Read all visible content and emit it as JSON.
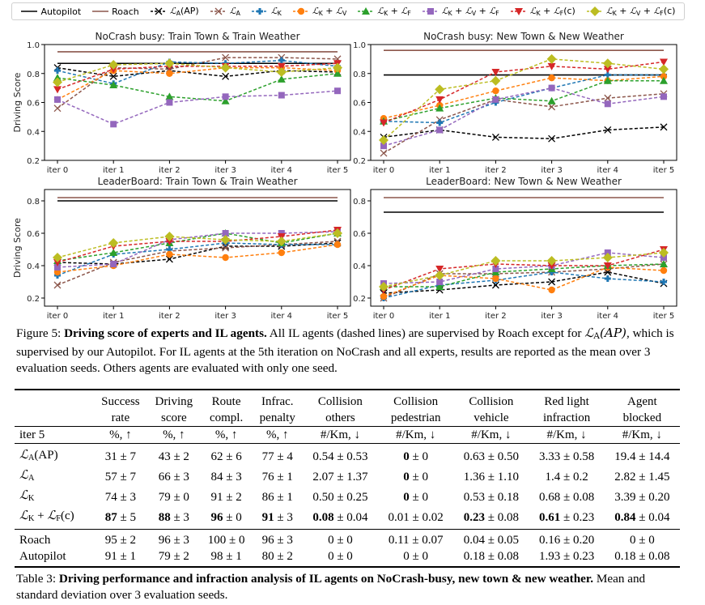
{
  "legend": [
    {
      "key": "autopilot",
      "label": "Autopilot",
      "math": false
    },
    {
      "key": "roach",
      "label": "Roach",
      "math": false
    },
    {
      "key": "la_ap",
      "label": "L_A(AP)",
      "math": true
    },
    {
      "key": "la",
      "label": "L_A",
      "math": true
    },
    {
      "key": "lk",
      "label": "L_K",
      "math": true
    },
    {
      "key": "lk_lv",
      "label": "L_K + L_V",
      "math": true
    },
    {
      "key": "lk_lf",
      "label": "L_K + L_F",
      "math": true
    },
    {
      "key": "lk_lv_lf",
      "label": "L_K + L_V + L_F",
      "math": true
    },
    {
      "key": "lk_lfc",
      "label": "L_K + L_F(c)",
      "math": true
    },
    {
      "key": "lk_lv_lfc",
      "label": "L_K + L_V + L_F(c)",
      "math": true
    }
  ],
  "series_styles": {
    "autopilot": {
      "color": "#000000",
      "dashed": false,
      "marker": "none"
    },
    "roach": {
      "color": "#8c564b",
      "dashed": false,
      "marker": "none"
    },
    "la_ap": {
      "color": "#000000",
      "dashed": true,
      "marker": "x"
    },
    "la": {
      "color": "#8c564b",
      "dashed": true,
      "marker": "x"
    },
    "lk": {
      "color": "#1f77b4",
      "dashed": true,
      "marker": "plus"
    },
    "lk_lv": {
      "color": "#ff7f0e",
      "dashed": true,
      "marker": "circle"
    },
    "lk_lf": {
      "color": "#2ca02c",
      "dashed": true,
      "marker": "triangle-up"
    },
    "lk_lv_lf": {
      "color": "#9467bd",
      "dashed": true,
      "marker": "square"
    },
    "lk_lfc": {
      "color": "#d62728",
      "dashed": true,
      "marker": "triangle-down"
    },
    "lk_lv_lfc": {
      "color": "#bcbd22",
      "dashed": true,
      "marker": "diamond"
    }
  },
  "chart_data": [
    {
      "type": "line",
      "title": "NoCrash busy: Train Town & Train Weather",
      "xlabel": "",
      "ylabel": "Driving Score",
      "categories": [
        "iter 0",
        "iter 1",
        "iter 2",
        "iter 3",
        "iter 4",
        "iter 5"
      ],
      "ylim": [
        0.2,
        1.0
      ],
      "yticks": [
        "0.2",
        "0.4",
        "0.6",
        "0.8",
        "1.0"
      ],
      "ytick_values": [
        0.2,
        0.4,
        0.6,
        0.8,
        1.0
      ],
      "hlines": [
        {
          "key": "roach",
          "value": 0.95
        },
        {
          "key": "autopilot",
          "value": 0.87
        }
      ],
      "series": [
        {
          "key": "la_ap",
          "name": "L_A(AP)",
          "values": [
            0.84,
            0.78,
            0.82,
            0.78,
            0.82,
            0.81
          ]
        },
        {
          "key": "la",
          "name": "L_A",
          "values": [
            0.56,
            0.84,
            0.83,
            0.91,
            0.91,
            0.9
          ]
        },
        {
          "key": "lk",
          "name": "L_K",
          "values": [
            0.82,
            0.73,
            0.88,
            0.87,
            0.89,
            0.85
          ]
        },
        {
          "key": "lk_lv",
          "name": "L_K + L_V",
          "values": [
            0.62,
            0.82,
            0.8,
            0.84,
            0.84,
            0.82
          ]
        },
        {
          "key": "lk_lf",
          "name": "L_K + L_F",
          "values": [
            0.77,
            0.72,
            0.64,
            0.61,
            0.76,
            0.8
          ]
        },
        {
          "key": "lk_lv_lf",
          "name": "L_K + L_V + L_F",
          "values": [
            0.62,
            0.45,
            0.6,
            0.64,
            0.65,
            0.68
          ]
        },
        {
          "key": "lk_lfc",
          "name": "L_K + L_F(c)",
          "values": [
            0.69,
            0.83,
            0.85,
            0.85,
            0.85,
            0.87
          ]
        },
        {
          "key": "lk_lv_lfc",
          "name": "L_K + L_V + L_F(c)",
          "values": [
            0.74,
            0.86,
            0.87,
            0.84,
            0.81,
            0.84
          ]
        }
      ],
      "grid": false,
      "legend": "top"
    },
    {
      "type": "line",
      "title": "NoCrash busy: New Town & New Weather",
      "xlabel": "",
      "ylabel": "",
      "categories": [
        "iter 0",
        "iter 1",
        "iter 2",
        "iter 3",
        "iter 4",
        "iter 5"
      ],
      "ylim": [
        0.2,
        1.0
      ],
      "yticks": [
        "0.2",
        "0.4",
        "0.6",
        "0.8",
        "1.0"
      ],
      "ytick_values": [
        0.2,
        0.4,
        0.6,
        0.8,
        1.0
      ],
      "hlines": [
        {
          "key": "roach",
          "value": 0.96
        },
        {
          "key": "autopilot",
          "value": 0.79
        }
      ],
      "series": [
        {
          "key": "la_ap",
          "name": "L_A(AP)",
          "values": [
            0.36,
            0.41,
            0.36,
            0.35,
            0.41,
            0.43
          ]
        },
        {
          "key": "la",
          "name": "L_A",
          "values": [
            0.25,
            0.48,
            0.62,
            0.57,
            0.63,
            0.66
          ]
        },
        {
          "key": "lk",
          "name": "L_K",
          "values": [
            0.47,
            0.46,
            0.6,
            0.7,
            0.79,
            0.79
          ]
        },
        {
          "key": "lk_lv",
          "name": "L_K + L_V",
          "values": [
            0.49,
            0.58,
            0.68,
            0.77,
            0.75,
            0.78
          ]
        },
        {
          "key": "lk_lf",
          "name": "L_K + L_F",
          "values": [
            0.47,
            0.56,
            0.63,
            0.61,
            0.75,
            0.75
          ]
        },
        {
          "key": "lk_lv_lf",
          "name": "L_K + L_V + L_F",
          "values": [
            0.3,
            0.41,
            0.62,
            0.7,
            0.59,
            0.64
          ]
        },
        {
          "key": "lk_lfc",
          "name": "L_K + L_F(c)",
          "values": [
            0.46,
            0.62,
            0.81,
            0.85,
            0.83,
            0.88
          ]
        },
        {
          "key": "lk_lv_lfc",
          "name": "L_K + L_V + L_F(c)",
          "values": [
            0.34,
            0.69,
            0.75,
            0.9,
            0.87,
            0.83
          ]
        }
      ],
      "grid": false,
      "legend": "top"
    },
    {
      "type": "line",
      "title": "LeaderBoard: Train Town & Train Weather",
      "xlabel": "",
      "ylabel": "Driving Score",
      "categories": [
        "iter 0",
        "iter 1",
        "iter 2",
        "iter 3",
        "iter 4",
        "iter 5"
      ],
      "ylim": [
        0.15,
        0.87
      ],
      "yticks": [
        "0.2",
        "0.4",
        "0.6",
        "0.8"
      ],
      "ytick_values": [
        0.2,
        0.4,
        0.6,
        0.8
      ],
      "hlines": [
        {
          "key": "roach",
          "value": 0.82
        },
        {
          "key": "autopilot",
          "value": 0.8
        }
      ],
      "series": [
        {
          "key": "la_ap",
          "name": "L_A(AP)",
          "values": [
            0.42,
            0.41,
            0.44,
            0.52,
            0.52,
            0.54
          ]
        },
        {
          "key": "la",
          "name": "L_A",
          "values": [
            0.28,
            0.42,
            0.49,
            0.51,
            0.53,
            0.55
          ]
        },
        {
          "key": "lk",
          "name": "L_K",
          "values": [
            0.34,
            0.47,
            0.5,
            0.54,
            0.53,
            0.53
          ]
        },
        {
          "key": "lk_lv",
          "name": "L_K + L_V",
          "values": [
            0.36,
            0.4,
            0.47,
            0.45,
            0.48,
            0.53
          ]
        },
        {
          "key": "lk_lf",
          "name": "L_K + L_F",
          "values": [
            0.43,
            0.48,
            0.54,
            0.6,
            0.54,
            0.6
          ]
        },
        {
          "key": "lk_lv_lf",
          "name": "L_K + L_V + L_F",
          "values": [
            0.39,
            0.41,
            0.56,
            0.6,
            0.6,
            0.61
          ]
        },
        {
          "key": "lk_lfc",
          "name": "L_K + L_F(c)",
          "values": [
            0.42,
            0.52,
            0.55,
            0.55,
            0.58,
            0.62
          ]
        },
        {
          "key": "lk_lv_lfc",
          "name": "L_K + L_V + L_F(c)",
          "values": [
            0.45,
            0.54,
            0.58,
            0.56,
            0.55,
            0.6
          ]
        }
      ],
      "grid": false,
      "legend": "top"
    },
    {
      "type": "line",
      "title": "LeaderBoard: New Town & New Weather",
      "xlabel": "",
      "ylabel": "",
      "categories": [
        "iter 0",
        "iter 1",
        "iter 2",
        "iter 3",
        "iter 4",
        "iter 5"
      ],
      "ylim": [
        0.15,
        0.87
      ],
      "yticks": [
        "0.2",
        "0.4",
        "0.6",
        "0.8"
      ],
      "ytick_values": [
        0.2,
        0.4,
        0.6,
        0.8
      ],
      "hlines": [
        {
          "key": "roach",
          "value": 0.82
        },
        {
          "key": "autopilot",
          "value": 0.73
        }
      ],
      "series": [
        {
          "key": "la_ap",
          "name": "L_A(AP)",
          "values": [
            0.23,
            0.25,
            0.28,
            0.3,
            0.36,
            0.29
          ]
        },
        {
          "key": "la",
          "name": "L_A",
          "values": [
            0.2,
            0.35,
            0.35,
            0.36,
            0.38,
            0.41
          ]
        },
        {
          "key": "lk",
          "name": "L_K",
          "values": [
            0.2,
            0.28,
            0.31,
            0.36,
            0.32,
            0.3
          ]
        },
        {
          "key": "lk_lv",
          "name": "L_K + L_V",
          "values": [
            0.21,
            0.34,
            0.32,
            0.25,
            0.39,
            0.37
          ]
        },
        {
          "key": "lk_lf",
          "name": "L_K + L_F",
          "values": [
            0.27,
            0.27,
            0.36,
            0.38,
            0.4,
            0.41
          ]
        },
        {
          "key": "lk_lv_lf",
          "name": "L_K + L_V + L_F",
          "values": [
            0.29,
            0.3,
            0.38,
            0.4,
            0.48,
            0.45
          ]
        },
        {
          "key": "lk_lfc",
          "name": "L_K + L_F(c)",
          "values": [
            0.25,
            0.38,
            0.41,
            0.4,
            0.4,
            0.5
          ]
        },
        {
          "key": "lk_lv_lfc",
          "name": "L_K + L_V + L_F(c)",
          "values": [
            0.27,
            0.34,
            0.43,
            0.43,
            0.45,
            0.48
          ]
        }
      ],
      "grid": false,
      "legend": "top"
    }
  ],
  "figure_caption": {
    "prefix": "Figure 5: ",
    "bold": "Driving score of experts and IL agents.",
    "rest_1": " All IL agents (dashed lines) are supervised by Roach except for ",
    "math": "L_A(AP)",
    "rest_2": ", which is supervised by our Autopilot. For IL agents at the 5th iteration on NoCrash and all experts, results are reported as the mean over 3 evaluation seeds. Others agents are evaluated with only one seed."
  },
  "table": {
    "header_row_label": "iter 5",
    "columns": [
      {
        "line1": "Success",
        "line2": "rate",
        "unit": "%, ↑"
      },
      {
        "line1": "Driving",
        "line2": "score",
        "unit": "%, ↑"
      },
      {
        "line1": "Route",
        "line2": "compl.",
        "unit": "%, ↑"
      },
      {
        "line1": "Infrac.",
        "line2": "penalty",
        "unit": "%, ↑"
      },
      {
        "line1": "Collision",
        "line2": "others",
        "unit": "#/Km, ↓"
      },
      {
        "line1": "Collision",
        "line2": "pedestrian",
        "unit": "#/Km, ↓"
      },
      {
        "line1": "Collision",
        "line2": "vehicle",
        "unit": "#/Km, ↓"
      },
      {
        "line1": "Red light",
        "line2": "infraction",
        "unit": "#/Km, ↓"
      },
      {
        "line1": "Agent",
        "line2": "blocked",
        "unit": "#/Km, ↓"
      }
    ],
    "agent_rows": [
      {
        "label": "L_A(AP)",
        "cells": [
          {
            "mean": "31",
            "std": "7",
            "bold": false
          },
          {
            "mean": "43",
            "std": "2",
            "bold": false
          },
          {
            "mean": "62",
            "std": "6",
            "bold": false
          },
          {
            "mean": "77",
            "std": "4",
            "bold": false
          },
          {
            "mean": "0.54",
            "std": "0.53",
            "bold": false
          },
          {
            "mean": "0",
            "std": "0",
            "bold": true
          },
          {
            "mean": "0.63",
            "std": "0.50",
            "bold": false
          },
          {
            "mean": "3.33",
            "std": "0.58",
            "bold": false
          },
          {
            "mean": "19.4",
            "std": "14.4",
            "bold": false
          }
        ]
      },
      {
        "label": "L_A",
        "cells": [
          {
            "mean": "57",
            "std": "7",
            "bold": false
          },
          {
            "mean": "66",
            "std": "3",
            "bold": false
          },
          {
            "mean": "84",
            "std": "3",
            "bold": false
          },
          {
            "mean": "76",
            "std": "1",
            "bold": false
          },
          {
            "mean": "2.07",
            "std": "1.37",
            "bold": false
          },
          {
            "mean": "0",
            "std": "0",
            "bold": true
          },
          {
            "mean": "1.36",
            "std": "1.10",
            "bold": false
          },
          {
            "mean": "1.4",
            "std": "0.2",
            "bold": false
          },
          {
            "mean": "2.82",
            "std": "1.45",
            "bold": false
          }
        ]
      },
      {
        "label": "L_K",
        "cells": [
          {
            "mean": "74",
            "std": "3",
            "bold": false
          },
          {
            "mean": "79",
            "std": "0",
            "bold": false
          },
          {
            "mean": "91",
            "std": "2",
            "bold": false
          },
          {
            "mean": "86",
            "std": "1",
            "bold": false
          },
          {
            "mean": "0.50",
            "std": "0.25",
            "bold": false
          },
          {
            "mean": "0",
            "std": "0",
            "bold": true
          },
          {
            "mean": "0.53",
            "std": "0.18",
            "bold": false
          },
          {
            "mean": "0.68",
            "std": "0.08",
            "bold": false
          },
          {
            "mean": "3.39",
            "std": "0.20",
            "bold": false
          }
        ]
      },
      {
        "label": "L_K + L_F(c)",
        "cells": [
          {
            "mean": "87",
            "std": "5",
            "bold": true
          },
          {
            "mean": "88",
            "std": "3",
            "bold": true
          },
          {
            "mean": "96",
            "std": "0",
            "bold": true
          },
          {
            "mean": "91",
            "std": "3",
            "bold": true
          },
          {
            "mean": "0.08",
            "std": "0.04",
            "bold": true
          },
          {
            "mean": "0.01",
            "std": "0.02",
            "bold": false
          },
          {
            "mean": "0.23",
            "std": "0.08",
            "bold": true
          },
          {
            "mean": "0.61",
            "std": "0.23",
            "bold": true
          },
          {
            "mean": "0.84",
            "std": "0.04",
            "bold": true
          }
        ]
      }
    ],
    "expert_rows": [
      {
        "label": "Roach",
        "cells": [
          {
            "mean": "95",
            "std": "2",
            "bold": false
          },
          {
            "mean": "96",
            "std": "3",
            "bold": false
          },
          {
            "mean": "100",
            "std": "0",
            "bold": false
          },
          {
            "mean": "96",
            "std": "3",
            "bold": false
          },
          {
            "mean": "0",
            "std": "0",
            "bold": false
          },
          {
            "mean": "0.11",
            "std": "0.07",
            "bold": false
          },
          {
            "mean": "0.04",
            "std": "0.05",
            "bold": false
          },
          {
            "mean": "0.16",
            "std": "0.20",
            "bold": false
          },
          {
            "mean": "0",
            "std": "0",
            "bold": false
          }
        ]
      },
      {
        "label": "Autopilot",
        "cells": [
          {
            "mean": "91",
            "std": "1",
            "bold": false
          },
          {
            "mean": "79",
            "std": "2",
            "bold": false
          },
          {
            "mean": "98",
            "std": "1",
            "bold": false
          },
          {
            "mean": "80",
            "std": "2",
            "bold": false
          },
          {
            "mean": "0",
            "std": "0",
            "bold": false
          },
          {
            "mean": "0",
            "std": "0",
            "bold": false
          },
          {
            "mean": "0.18",
            "std": "0.08",
            "bold": false
          },
          {
            "mean": "1.93",
            "std": "0.23",
            "bold": false
          },
          {
            "mean": "0.18",
            "std": "0.08",
            "bold": false
          }
        ]
      }
    ]
  },
  "table_caption": {
    "prefix": "Table 3: ",
    "bold": "Driving performance and infraction analysis of IL agents on NoCrash-busy, new town & new weather.",
    "rest": " Mean and standard deviation over 3 evaluation seeds."
  }
}
